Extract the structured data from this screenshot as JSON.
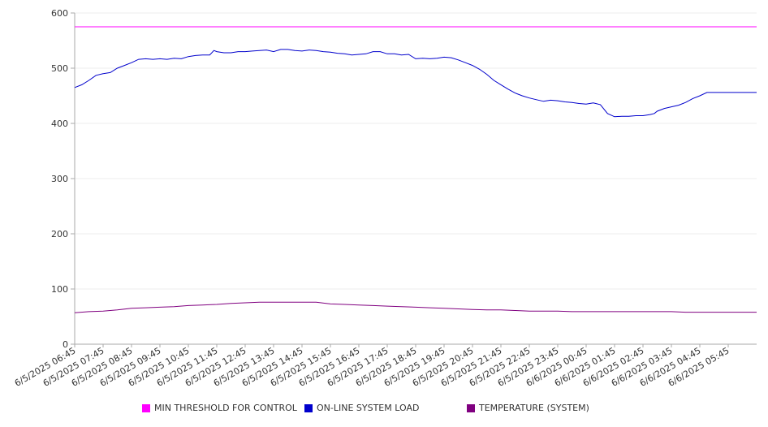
{
  "chart_data": {
    "type": "line",
    "title": "",
    "xlabel": "",
    "ylabel": "",
    "ylim": [
      0,
      600
    ],
    "yticks": [
      0,
      100,
      200,
      300,
      400,
      500,
      600
    ],
    "grid": true,
    "legend_position": "bottom",
    "x_tick_labels": [
      "6/5/2025 06:45",
      "6/5/2025 07:45",
      "6/5/2025 08:45",
      "6/5/2025 09:45",
      "6/5/2025 10:45",
      "6/5/2025 11:45",
      "6/5/2025 12:45",
      "6/5/2025 13:45",
      "6/5/2025 14:45",
      "6/5/2025 15:45",
      "6/5/2025 16:45",
      "6/5/2025 17:45",
      "6/5/2025 18:45",
      "6/5/2025 19:45",
      "6/5/2025 20:45",
      "6/5/2025 21:45",
      "6/5/2025 22:45",
      "6/5/2025 23:45",
      "6/6/2025 00:45",
      "6/6/2025 01:45",
      "6/6/2025 02:45",
      "6/6/2025 03:45",
      "6/6/2025 04:45",
      "6/6/2025 05:45"
    ],
    "x_range_hours": [
      0,
      24
    ],
    "series": [
      {
        "name": "MIN THRESHOLD FOR CONTROL",
        "color": "#ff00ff",
        "x": [
          0,
          24
        ],
        "values": [
          575,
          575
        ]
      },
      {
        "name": "ON-LINE SYSTEM LOAD",
        "color": "#0000cc",
        "x": [
          0,
          0.25,
          0.5,
          0.75,
          1.0,
          1.25,
          1.5,
          1.75,
          2.0,
          2.25,
          2.5,
          2.75,
          3.0,
          3.25,
          3.5,
          3.75,
          4.0,
          4.25,
          4.5,
          4.75,
          4.9,
          5.0,
          5.25,
          5.5,
          5.75,
          6.0,
          6.25,
          6.5,
          6.75,
          7.0,
          7.25,
          7.5,
          7.75,
          8.0,
          8.25,
          8.5,
          8.75,
          9.0,
          9.25,
          9.5,
          9.75,
          10.0,
          10.25,
          10.5,
          10.75,
          11.0,
          11.25,
          11.5,
          11.75,
          12.0,
          12.25,
          12.5,
          12.75,
          13.0,
          13.25,
          13.5,
          13.75,
          14.0,
          14.25,
          14.5,
          14.75,
          15.0,
          15.25,
          15.5,
          15.75,
          16.0,
          16.25,
          16.5,
          16.75,
          17.0,
          17.25,
          17.5,
          17.75,
          18.0,
          18.25,
          18.5,
          18.75,
          19.0,
          19.25,
          19.5,
          19.75,
          20.0,
          20.25,
          20.4,
          20.5,
          20.75,
          21.0,
          21.25,
          21.5,
          21.75,
          22.0,
          22.25,
          22.5,
          22.75,
          23.0,
          23.25,
          23.5,
          23.75,
          24.0
        ],
        "values": [
          465,
          470,
          478,
          487,
          490,
          492,
          500,
          505,
          510,
          516,
          517,
          516,
          517,
          516,
          518,
          517,
          521,
          523,
          524,
          524,
          532,
          530,
          528,
          528,
          530,
          530,
          531,
          532,
          533,
          530,
          534,
          534,
          532,
          531,
          533,
          532,
          530,
          529,
          527,
          526,
          524,
          525,
          526,
          530,
          530,
          526,
          526,
          524,
          525,
          517,
          518,
          517,
          518,
          520,
          519,
          515,
          510,
          505,
          498,
          489,
          478,
          470,
          462,
          455,
          450,
          446,
          443,
          440,
          442,
          441,
          439,
          438,
          436,
          435,
          437,
          434,
          418,
          412,
          413,
          413,
          414,
          414,
          416,
          418,
          422,
          427,
          430,
          433,
          438,
          445,
          450,
          456,
          456,
          456,
          456,
          456,
          456,
          456,
          456
        ]
      },
      {
        "name": "TEMPERATURE (SYSTEM)",
        "color": "#800080",
        "x": [
          0,
          0.5,
          1,
          1.5,
          2,
          2.5,
          3,
          3.5,
          4,
          4.5,
          5,
          5.5,
          6,
          6.5,
          7,
          7.5,
          8,
          8.5,
          9,
          9.5,
          10,
          10.5,
          11,
          11.5,
          12,
          12.5,
          13,
          13.5,
          14,
          14.5,
          15,
          15.5,
          16,
          16.5,
          17,
          17.5,
          18,
          18.5,
          19,
          19.5,
          20,
          20.5,
          21,
          21.5,
          22,
          22.5,
          23,
          23.5,
          24
        ],
        "values": [
          57,
          59,
          60,
          62,
          65,
          66,
          67,
          68,
          70,
          71,
          72,
          74,
          75,
          76,
          76,
          76,
          76,
          76,
          73,
          72,
          71,
          70,
          69,
          68,
          67,
          66,
          65,
          64,
          63,
          62,
          62,
          61,
          60,
          60,
          60,
          59,
          59,
          59,
          59,
          59,
          59,
          59,
          59,
          58,
          58,
          58,
          58,
          58,
          58
        ]
      }
    ]
  }
}
